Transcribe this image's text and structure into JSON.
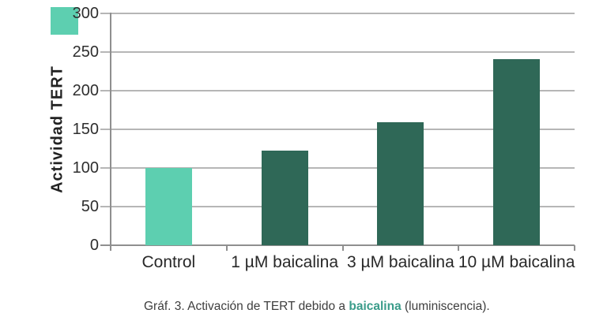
{
  "chart_data": {
    "type": "bar",
    "categories": [
      "Control",
      "1 µM baicalina",
      "3 µM baicalina",
      "10 µM baicalina"
    ],
    "values": [
      100,
      122,
      159,
      241
    ],
    "title": "",
    "xlabel": "",
    "ylabel": "Actividad TERT",
    "ylim": [
      0,
      300
    ],
    "yticks": [
      0,
      50,
      100,
      150,
      200,
      250,
      300
    ],
    "grid": true,
    "legend": "none",
    "bar_colors": [
      "#5dcfb0",
      "#2f6857",
      "#2f6857",
      "#2f6857"
    ]
  },
  "caption": {
    "prefix": "Gráf. 3. Activación de TERT debido a ",
    "highlight": "baicalina",
    "suffix": " (luminiscencia)."
  },
  "colors": {
    "control_bar": "#5dcfb0",
    "treatment_bar": "#2f6857",
    "caption_highlight": "#3a9c8a",
    "gridline": "#b6b6b6",
    "axis": "#8f8f8f",
    "decor_square": "#5dcfb0",
    "tick_text": "#2e2e2e"
  }
}
